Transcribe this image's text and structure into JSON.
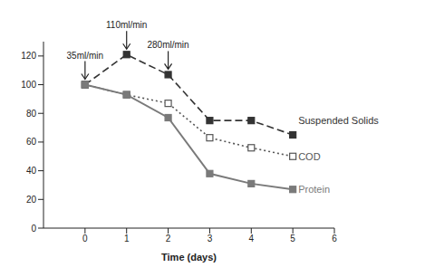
{
  "chart_data": {
    "type": "line",
    "x": [
      0,
      1,
      2,
      3,
      4,
      5
    ],
    "xlabel": "Time (days)",
    "xlim": [
      -1,
      6
    ],
    "xticks": [
      0,
      1,
      2,
      3,
      4,
      5,
      6
    ],
    "ylim": [
      0,
      130
    ],
    "yticks": [
      0,
      20,
      40,
      60,
      80,
      100,
      120
    ],
    "grid": false,
    "series": [
      {
        "name": "Suspended Solids",
        "color": "#333333",
        "line_style": "dashed",
        "marker": "square",
        "values": [
          100,
          121,
          107,
          75,
          75,
          65
        ]
      },
      {
        "name": "COD",
        "color": "#555555",
        "line_style": "dotted",
        "marker": "square_open",
        "values": [
          100,
          93,
          87,
          63,
          56,
          50
        ]
      },
      {
        "name": "Protein",
        "color": "#7a7a7a",
        "line_style": "solid",
        "marker": "square",
        "values": [
          100,
          93,
          77,
          38,
          31,
          27
        ]
      }
    ],
    "annotations": [
      {
        "x": 0,
        "text": "35ml/min"
      },
      {
        "x": 1,
        "text": "110ml/min"
      },
      {
        "x": 2,
        "text": "280ml/min"
      }
    ]
  }
}
